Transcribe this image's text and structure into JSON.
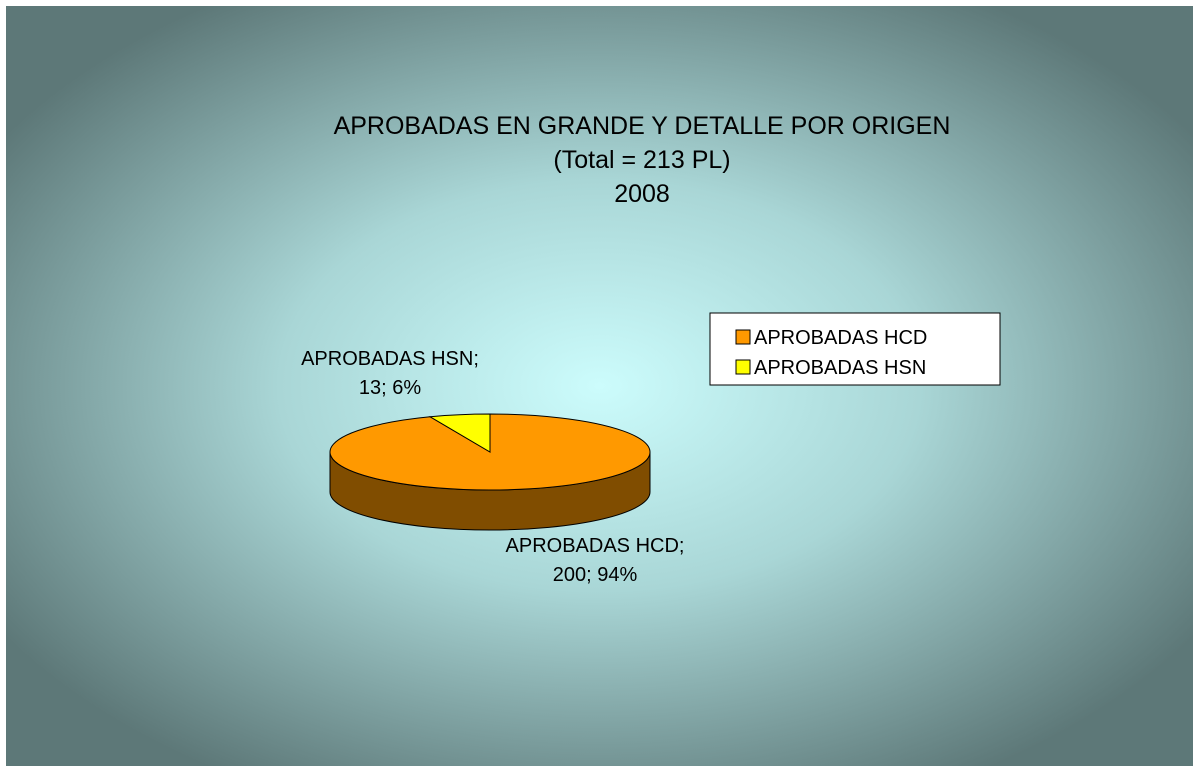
{
  "chart_data": {
    "type": "pie",
    "title": "APROBADAS EN GRANDE Y DETALLE POR ORIGEN",
    "subtitle": [
      "(Total = 213 PL)",
      "2008"
    ],
    "categories": [
      "APROBADAS HCD",
      "APROBADAS HSN"
    ],
    "values": [
      200,
      13
    ],
    "colors": [
      "#ff9900",
      "#ffff00"
    ],
    "value_labels": [
      [
        "APROBADAS HCD;",
        "200; 94%"
      ],
      [
        "APROBADAS HSN;",
        "13; 6%"
      ]
    ],
    "legend": "right",
    "three_d": true
  }
}
